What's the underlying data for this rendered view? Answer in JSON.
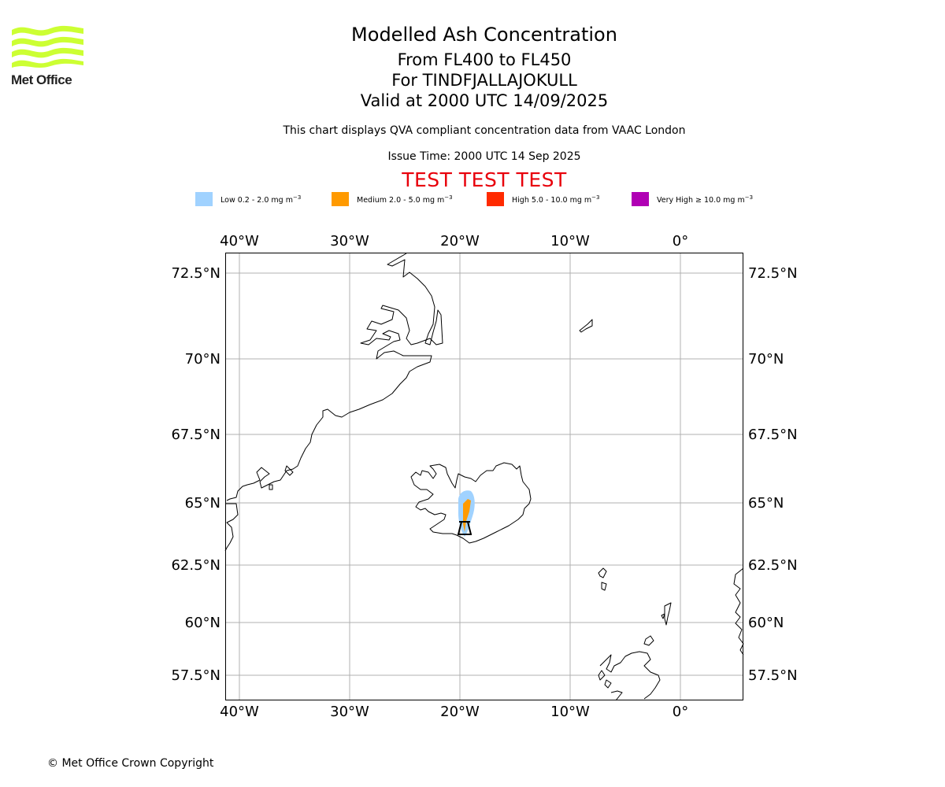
{
  "brand": {
    "name": "Met Office",
    "logo_color": "#ccff33"
  },
  "title": {
    "main": "Modelled Ash Concentration",
    "levels": "From FL400 to FL450",
    "volcano": "For TINDFJALLAJOKULL",
    "valid": "Valid at 2000 UTC 14/09/2025"
  },
  "subtitle": "This chart displays QVA compliant concentration data from VAAC London",
  "issue_time": "Issue Time: 2000 UTC 14 Sep 2025",
  "test_banner": "TEST TEST TEST",
  "legend": [
    {
      "prefix": "Low 0.2 - 2.0 mg m",
      "sup": "−3",
      "color": "#a0d2ff"
    },
    {
      "prefix": "Medium 2.0 - 5.0 mg m",
      "sup": "−3",
      "color": "#ff9a00"
    },
    {
      "prefix": "High 5.0 - 10.0 mg m",
      "sup": "−3",
      "color": "#ff2a00"
    },
    {
      "prefix": "Very High  ≥  10.0 mg m",
      "sup": "−3",
      "color": "#b000b4"
    }
  ],
  "map": {
    "lon_labels": [
      "40°W",
      "30°W",
      "20°W",
      "10°W",
      "0°"
    ],
    "lat_labels": [
      "72.5°N",
      "70°N",
      "67.5°N",
      "65°N",
      "62.5°N",
      "60°N",
      "57.5°N"
    ],
    "volcano_marker": "volcano-icon"
  },
  "copyright": "© Met Office Crown Copyright"
}
